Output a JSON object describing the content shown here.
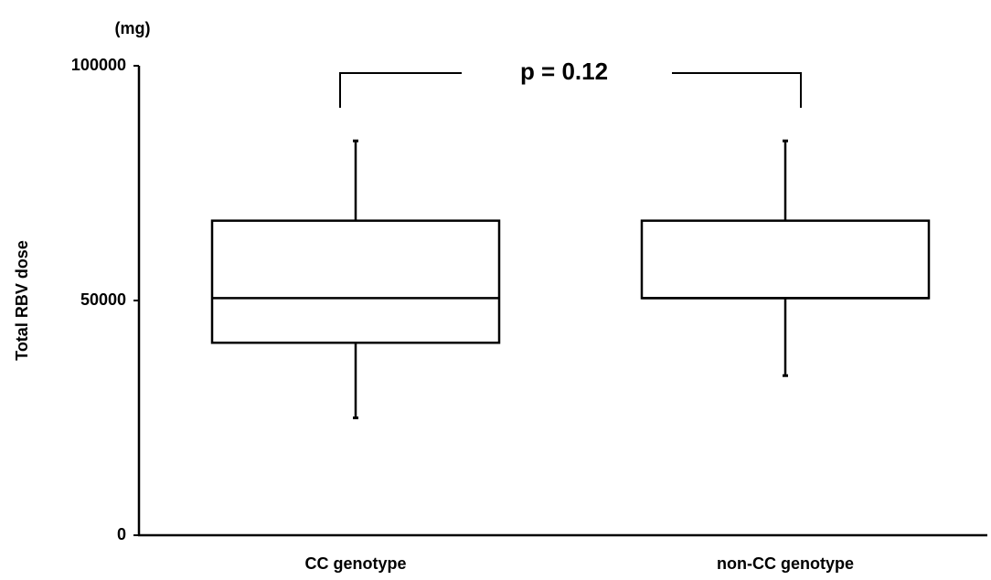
{
  "chart_data": {
    "type": "box",
    "y_label": "Total RBV dose",
    "y_unit": "(mg)",
    "annotation": "p = 0.12",
    "categories": [
      "CC genotype",
      "non-CC genotype"
    ],
    "boxes": [
      {
        "min": 25000,
        "q1": 41000,
        "median": 50500,
        "q3": 67000,
        "max": 84000
      },
      {
        "min": 34000,
        "q1": 50500,
        "median": 50500,
        "q3": 67000,
        "max": 84000
      }
    ],
    "color": "#000000",
    "ylim": [
      0,
      100000
    ],
    "yticks": [
      0,
      50000,
      100000
    ]
  }
}
